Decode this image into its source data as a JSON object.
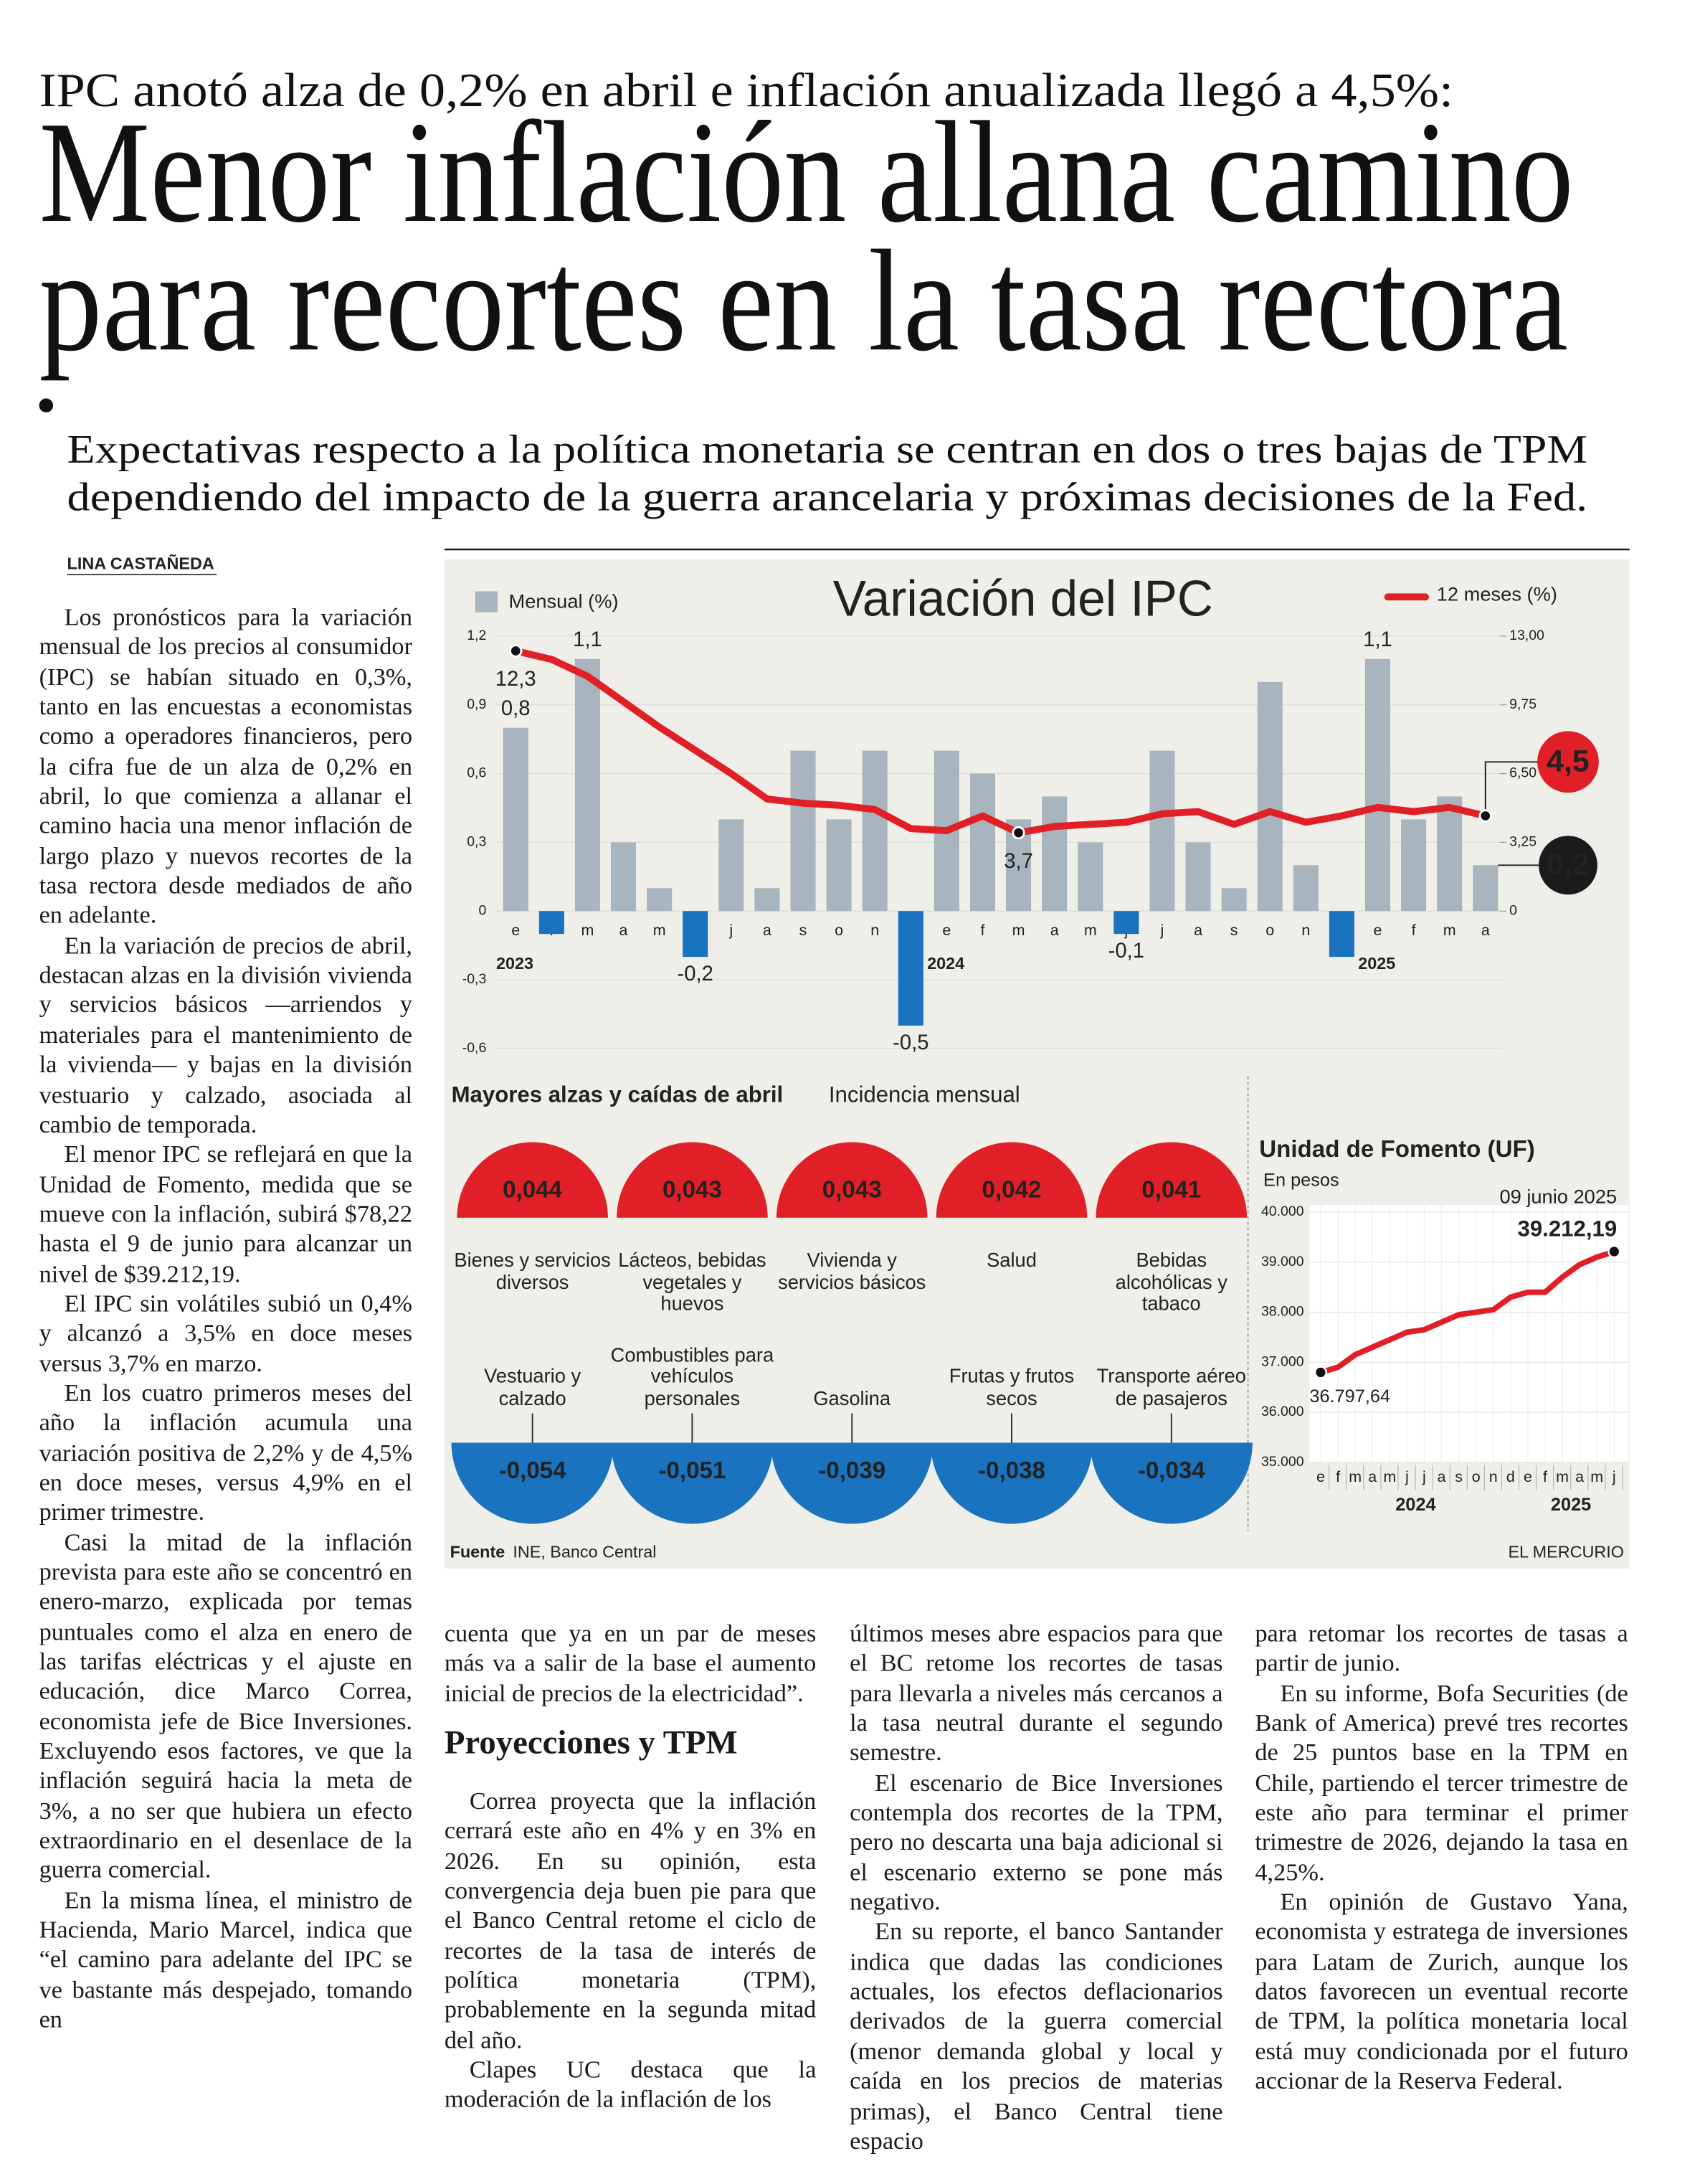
{
  "header": {
    "kicker": "IPC anotó alza de 0,2% en abril e inflación anualizada llegó a 4,5%:",
    "headline": [
      "Menor inflación allana camino",
      "para recortes en la tasa rectora"
    ],
    "deck": [
      "Expectativas respecto a la política monetaria se centran en dos o tres bajas de TPM",
      "dependiendo del impacto de la guerra arancelaria y próximas decisiones de la Fed."
    ]
  },
  "article": {
    "byline": "LINA CASTAÑEDA",
    "subhead": "Proyecciones y TPM",
    "columns": [
      [
        "Los pronósticos para la variación mensual de los precios al consumidor (IPC) se habían situado en 0,3%, tanto en las encuestas a economistas como a operadores financieros, pero la cifra fue de un alza de 0,2% en abril, lo que comienza a allanar el camino hacia una menor inflación de largo plazo y nuevos recortes de la tasa rectora desde mediados de año en adelante.",
        "En la variación de precios de abril, destacan alzas en la división vivienda y servicios básicos —arriendos y materiales para el mantenimiento de la vivienda— y bajas en la división vestuario y calzado, asociada al cambio de temporada.",
        "El menor IPC se reflejará en que la Unidad de Fomento, medida que se mueve con la inflación, subirá $78,22 hasta el 9 de junio para alcanzar un nivel de $39.212,19.",
        "El IPC sin volátiles subió un 0,4% y alcanzó a 3,5% en doce meses versus 3,7% en marzo.",
        "En los cuatro primeros meses del año la inflación acumula una variación positiva de 2,2% y de 4,5% en doce meses, versus 4,9% en el primer trimestre.",
        "Casi la mitad de la inflación prevista para este año se concentró en enero-marzo, explicada por temas puntuales como el alza en enero de las tarifas eléctricas y el ajuste en educación, dice Marco Correa, economista jefe de Bice Inversiones. Excluyendo esos factores, ve que la inflación seguirá hacia la meta de 3%, a no ser que hubiera un efecto extraordinario en el desenlace de la guerra comercial.",
        "En la misma línea, el ministro de Hacienda, Mario Marcel, indica que “el camino para adelante del IPC se ve bastante más despejado, tomando en"
      ],
      [
        "cuenta que ya en un par de meses más va a salir de la base el aumento inicial de precios de la electricidad”.",
        "Correa proyecta que la inflación cerrará este año en 4% y en 3% en 2026. En su opinión, esta convergencia deja buen pie para que el Banco Central retome el ciclo de recortes de la tasa de interés de política monetaria (TPM), probablemente en la segunda mitad del año.",
        "Clapes UC destaca que la moderación de la inflación de los"
      ],
      [
        "últimos meses abre espacios para que el BC retome los recortes de tasas para llevarla a niveles más cercanos a la tasa neutral durante el segundo semestre.",
        "El escenario de Bice Inversiones contempla dos recortes de la TPM, pero no descarta una baja adicional si el escenario externo se pone más negativo.",
        "En su reporte, el banco Santander indica que dadas las condiciones actuales, los efectos deflacionarios derivados de la guerra comercial (menor demanda global y local y caída en los precios de materias primas), el Banco Central tiene espacio"
      ],
      [
        "para retomar los recortes de tasas a partir de junio.",
        "En su informe, Bofa Securities (de Bank of America) prevé tres recortes de 25 puntos base en la TPM en Chile, partiendo el tercer trimestre de este año para terminar el primer trimestre de 2026, dejando la tasa en 4,25%.",
        "En opinión de Gustavo Yana, economista y estratega de inversiones para Latam de Zurich, aunque los datos favorecen un eventual recorte de TPM, la política monetaria local está muy condicionada por el futuro accionar de la Reserva Federal."
      ]
    ]
  },
  "chart_data": [
    {
      "type": "bar_line",
      "title": "Variación del IPC",
      "categories": [
        "e",
        "f",
        "m",
        "a",
        "m",
        "j",
        "j",
        "a",
        "s",
        "o",
        "n",
        "d",
        "e",
        "f",
        "m",
        "a",
        "m",
        "j",
        "j",
        "a",
        "s",
        "o",
        "n",
        "d",
        "e",
        "f",
        "m",
        "a"
      ],
      "year_labels": [
        "2023",
        "2024",
        "2025"
      ],
      "series": [
        {
          "name": "Mensual (%)",
          "type": "bar",
          "color": "#a8b4be",
          "negative_color": "#1a73bf",
          "values": [
            0.8,
            -0.1,
            1.1,
            0.3,
            0.1,
            -0.2,
            0.4,
            0.1,
            0.7,
            0.4,
            0.7,
            -0.5,
            0.7,
            0.6,
            0.4,
            0.5,
            0.3,
            -0.1,
            0.7,
            0.3,
            0.1,
            1.0,
            0.2,
            -0.2,
            1.1,
            0.4,
            0.5,
            0.2
          ],
          "value_labels": [
            "0,8",
            null,
            "1,1",
            null,
            null,
            "-0,2",
            null,
            null,
            null,
            null,
            null,
            "-0,5",
            null,
            null,
            null,
            null,
            null,
            "-0,1",
            null,
            null,
            null,
            null,
            null,
            null,
            "1,1",
            null,
            null,
            "0,2"
          ]
        },
        {
          "name": "12 meses (%)",
          "type": "line",
          "axis": "y2",
          "color": "#e01f26",
          "values": [
            12.3,
            11.9,
            11.1,
            9.9,
            8.7,
            7.6,
            6.5,
            5.3,
            5.1,
            5.0,
            4.8,
            3.9,
            3.8,
            4.5,
            3.7,
            4.0,
            4.1,
            4.2,
            4.6,
            4.7,
            4.1,
            4.7,
            4.2,
            4.5,
            4.9,
            4.7,
            4.9,
            4.5
          ],
          "value_labels": [
            "12,3",
            null,
            null,
            null,
            null,
            null,
            null,
            null,
            null,
            null,
            null,
            null,
            null,
            null,
            "3,7",
            null,
            null,
            null,
            null,
            null,
            null,
            null,
            null,
            null,
            null,
            null,
            null,
            "4,5"
          ]
        }
      ],
      "ylim": [
        -0.6,
        1.2
      ],
      "yticks": [
        {
          "value": -0.6,
          "label": "-0,6"
        },
        {
          "value": -0.3,
          "label": "-0,3"
        },
        0,
        {
          "value": 0.3,
          "label": "0,3"
        },
        {
          "value": 0.6,
          "label": "0,6"
        },
        {
          "value": 0.9,
          "label": "0,9"
        },
        {
          "value": 1.2,
          "label": "1,2"
        }
      ],
      "y2lim": [
        -6.5,
        13
      ],
      "y2ticks": [
        0,
        {
          "value": 3.25,
          "label": "3,25"
        },
        {
          "value": 6.5,
          "label": "6,50"
        },
        {
          "value": 9.75,
          "label": "9,75"
        },
        {
          "value": 13,
          "label": "13,00"
        }
      ]
    },
    {
      "type": "semicircle",
      "title": "Mayores alzas y caídas de abril",
      "subtitle": "Incidencia mensual",
      "groups": [
        {
          "color": "#e01f26",
          "categories": [
            "Bienes y servicios diversos",
            "Lácteos, bebidas vegetales y huevos",
            "Vivienda y servicios básicos",
            "Salud",
            "Bebidas alcohólicas y tabaco"
          ],
          "values": [
            0.044,
            0.043,
            0.043,
            0.042,
            0.041
          ],
          "value_labels": [
            "0,044",
            "0,043",
            "0,043",
            "0,042",
            "0,041"
          ]
        },
        {
          "color": "#1a73bf",
          "categories": [
            "Vestuario y calzado",
            "Combustibles para vehículos personales",
            "Gasolina",
            "Frutas y frutos secos",
            "Transporte aéreo de pasajeros"
          ],
          "values": [
            -0.054,
            -0.051,
            -0.039,
            -0.038,
            -0.034
          ],
          "value_labels": [
            "-0,054",
            "-0,051",
            "-0,039",
            "-0,038",
            "-0,034"
          ]
        }
      ]
    },
    {
      "type": "line",
      "title": "Unidad de Fomento (UF)",
      "subtitle": "En pesos",
      "date_label": "09 junio 2025",
      "categories": [
        "e",
        "f",
        "m",
        "a",
        "m",
        "j",
        "j",
        "a",
        "s",
        "o",
        "n",
        "d",
        "e",
        "f",
        "m",
        "a",
        "m",
        "j"
      ],
      "year_labels": [
        "2024",
        "2025"
      ],
      "series": [
        {
          "color": "#e01f26",
          "values": [
            36797.64,
            36900,
            37150,
            37300,
            37450,
            37600,
            37650,
            37800,
            37950,
            38000,
            38050,
            38300,
            38400,
            38400,
            38700,
            38950,
            39100,
            39212.19
          ],
          "value_labels": [
            "36.797,64",
            null,
            null,
            null,
            null,
            null,
            null,
            null,
            null,
            null,
            null,
            null,
            null,
            null,
            null,
            null,
            null,
            "39.212,19"
          ]
        }
      ],
      "ylim": [
        35000,
        40000
      ],
      "yticks": [
        {
          "value": 35000,
          "label": "35.000"
        },
        {
          "value": 36000,
          "label": "36.000"
        },
        {
          "value": 37000,
          "label": "37.000"
        },
        {
          "value": 38000,
          "label": "38.000"
        },
        {
          "value": 39000,
          "label": "39.000"
        },
        {
          "value": 40000,
          "label": "40.000"
        }
      ]
    }
  ],
  "footer": {
    "source_label": "Fuente",
    "source": "INE, Banco Central",
    "publisher": "EL MERCURIO"
  }
}
